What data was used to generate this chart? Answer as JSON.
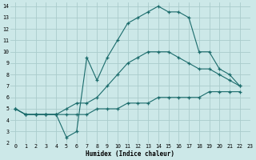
{
  "xlabel": "Humidex (Indice chaleur)",
  "bg_color": "#cce8e8",
  "grid_color": "#aacccc",
  "line_color": "#1a6b6b",
  "line1_y": [
    5,
    4.5,
    4.5,
    4.5,
    4.5,
    2.5,
    3.0,
    9.5,
    7.5,
    9.5,
    11.0,
    12.5,
    13.0,
    13.5,
    14.0,
    13.5,
    13.5,
    13.0,
    10.0,
    10.0,
    8.5,
    8.0,
    7.0
  ],
  "line2_y": [
    5,
    4.5,
    4.5,
    4.5,
    4.5,
    5.0,
    5.5,
    5.5,
    6.0,
    7.0,
    8.0,
    9.0,
    9.5,
    10.0,
    10.0,
    10.0,
    9.5,
    9.0,
    8.5,
    8.5,
    8.0,
    7.5,
    7.0
  ],
  "line3_y": [
    5,
    4.5,
    4.5,
    4.5,
    4.5,
    4.5,
    4.5,
    4.5,
    5.0,
    5.0,
    5.0,
    5.5,
    5.5,
    5.5,
    6.0,
    6.0,
    6.0,
    6.0,
    6.0,
    6.5,
    6.5,
    6.5,
    6.5
  ],
  "xlim": [
    -0.5,
    23
  ],
  "ylim": [
    2,
    14.3
  ],
  "xticks": [
    0,
    1,
    2,
    3,
    4,
    5,
    6,
    7,
    8,
    9,
    10,
    11,
    12,
    13,
    14,
    15,
    16,
    17,
    18,
    19,
    20,
    21,
    22,
    23
  ],
  "yticks": [
    2,
    3,
    4,
    5,
    6,
    7,
    8,
    9,
    10,
    11,
    12,
    13,
    14
  ],
  "xlabel_fontsize": 5.5,
  "tick_fontsize": 4.8
}
